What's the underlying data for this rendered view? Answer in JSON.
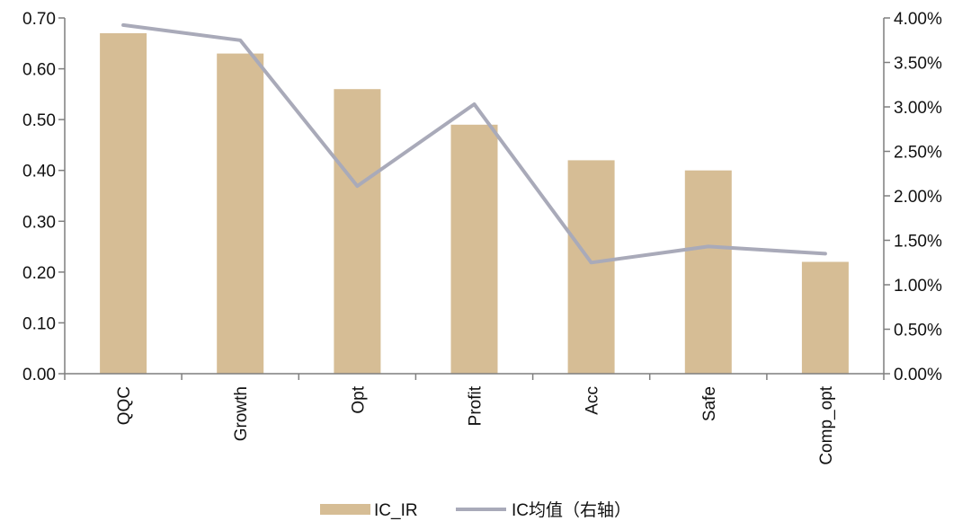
{
  "chart_data": {
    "type": "bar",
    "categories": [
      "QQC",
      "Growth",
      "Opt",
      "Profit",
      "Acc",
      "Safe",
      "Comp_opt"
    ],
    "series": [
      {
        "name": "IC_IR",
        "kind": "bar",
        "axis": "left",
        "color": "#d6bd95",
        "values": [
          0.67,
          0.63,
          0.56,
          0.49,
          0.42,
          0.4,
          0.22
        ]
      },
      {
        "name": "IC均值（右轴）",
        "kind": "line",
        "axis": "right",
        "color": "#a9aab9",
        "values": [
          0.0392,
          0.0375,
          0.0211,
          0.0303,
          0.0125,
          0.0143,
          0.0135
        ]
      }
    ],
    "left_axis": {
      "ylim": [
        0,
        0.7
      ],
      "ticks": [
        "0.00",
        "0.10",
        "0.20",
        "0.30",
        "0.40",
        "0.50",
        "0.60",
        "0.70"
      ]
    },
    "right_axis": {
      "ylim": [
        0,
        0.04
      ],
      "ticks": [
        "0.00%",
        "0.50%",
        "1.00%",
        "1.50%",
        "2.00%",
        "2.50%",
        "3.00%",
        "3.50%",
        "4.00%"
      ]
    },
    "grid": false,
    "legend": "bottom-center",
    "title": "",
    "xlabel": "",
    "ylabel": ""
  }
}
